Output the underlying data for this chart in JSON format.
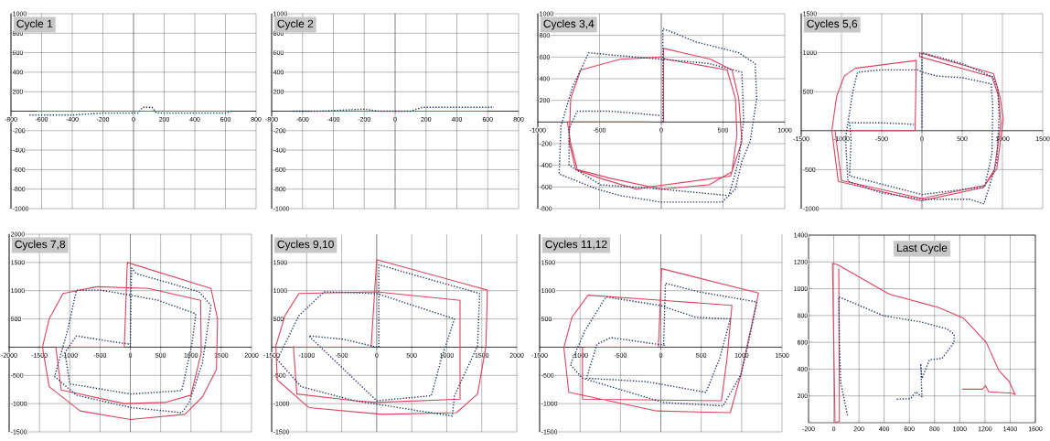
{
  "chart_data": [
    {
      "type": "line",
      "title": "Cycle 1",
      "xlim": [
        -800,
        800
      ],
      "ylim": [
        -1000,
        1000
      ],
      "xticks": [
        -800,
        -600,
        -400,
        -200,
        0,
        200,
        400,
        600,
        800
      ],
      "yticks": [
        -1000,
        -800,
        -600,
        -400,
        -200,
        200,
        400,
        600,
        800,
        1000
      ],
      "grid": true,
      "series": [
        {
          "color": "#d9455f",
          "line_style": "solid",
          "x": [
            -630,
            640
          ],
          "values": [
            0,
            0
          ]
        },
        {
          "color": "#2a3a6a",
          "line_style": "dotted",
          "x": [
            -680,
            -400,
            -200,
            -50,
            30,
            60,
            120,
            150,
            400,
            600,
            640
          ],
          "values": [
            -40,
            -40,
            -20,
            -20,
            -20,
            40,
            40,
            -20,
            -20,
            -20,
            0
          ]
        }
      ]
    },
    {
      "type": "line",
      "title": "Cycle 2",
      "xlim": [
        -800,
        800
      ],
      "ylim": [
        -1000,
        1000
      ],
      "xticks": [
        -800,
        -600,
        -400,
        -200,
        0,
        200,
        400,
        600,
        800
      ],
      "yticks": [
        -1000,
        -800,
        -600,
        -400,
        -200,
        200,
        400,
        600,
        800,
        1000
      ],
      "grid": true,
      "series": [
        {
          "color": "#d9455f",
          "line_style": "solid",
          "x": [
            -540,
            600
          ],
          "values": [
            0,
            0
          ]
        },
        {
          "color": "#2a3a6a",
          "line_style": "dotted",
          "x": [
            -660,
            -500,
            -200,
            -100,
            0,
            100,
            180,
            400,
            600,
            640
          ],
          "values": [
            0,
            0,
            20,
            0,
            0,
            0,
            40,
            40,
            40,
            40
          ]
        }
      ]
    },
    {
      "type": "line",
      "title": "Cycles 3,4",
      "xlim": [
        -1000,
        1000
      ],
      "ylim": [
        -800,
        1000
      ],
      "xticks": [
        -1000,
        -500,
        0,
        500,
        1000
      ],
      "yticks": [
        -800,
        -600,
        -400,
        -200,
        200,
        400,
        600,
        800,
        1000
      ],
      "grid": true,
      "series": [
        {
          "color": "#d9455f",
          "line_style": "solid",
          "x": [
            19,
            19,
            400,
            573,
            627,
            653,
            560,
            -93,
            -200,
            -493,
            -693,
            -747,
            -733,
            -653,
            -333,
            0,
            40,
            533,
            600,
            613,
            573,
            387,
            0,
            -413,
            -680,
            -733,
            -760,
            -93
          ],
          "values": [
            0,
            680,
            580,
            480,
            220,
            -180,
            -500,
            -600,
            -620,
            -520,
            -440,
            -180,
            220,
            480,
            580,
            600,
            580,
            480,
            220,
            -120,
            -460,
            -580,
            -620,
            -520,
            -440,
            -200,
            0,
            0
          ]
        },
        {
          "color": "#2a3a6a",
          "line_style": "dotted",
          "x": [
            13,
            13,
            67,
            280,
            627,
            760,
            773,
            720,
            653,
            600,
            493,
            0,
            -333,
            -520,
            -827,
            -813,
            -720,
            -587,
            -413,
            0,
            387,
            653,
            667,
            627,
            547,
            0,
            -493,
            -747,
            -747,
            -680,
            -413,
            -13
          ],
          "values": [
            0,
            860,
            840,
            740,
            640,
            540,
            220,
            -180,
            -360,
            -620,
            -740,
            -740,
            -680,
            -620,
            -480,
            -40,
            320,
            640,
            620,
            580,
            540,
            460,
            20,
            -360,
            -680,
            -620,
            -580,
            -400,
            -60,
            100,
            100,
            60
          ]
        }
      ]
    },
    {
      "type": "line",
      "title": "Cycles 5,6",
      "xlim": [
        -1500,
        1500
      ],
      "ylim": [
        -1000,
        1500
      ],
      "xticks": [
        -1500,
        -1000,
        -500,
        0,
        500,
        1000,
        1500
      ],
      "yticks": [
        -1000,
        -500,
        500,
        1000,
        1500
      ],
      "grid": true,
      "series": [
        {
          "color": "#d9455f",
          "line_style": "solid",
          "x": [
            -980,
            -85,
            -70,
            -830,
            -965,
            -1060,
            -1120,
            -1040,
            -10,
            760,
            930,
            1010,
            970,
            890,
            -30,
            -30,
            870,
            950,
            980,
            900,
            780,
            0,
            -1000,
            -1080
          ],
          "values": [
            0,
            0,
            900,
            800,
            700,
            440,
            0,
            -650,
            -900,
            -730,
            -490,
            150,
            430,
            730,
            1000,
            950,
            690,
            450,
            100,
            -500,
            -700,
            -870,
            -640,
            0
          ]
        },
        {
          "color": "#2a3a6a",
          "line_style": "dotted",
          "x": [
            0,
            0,
            80,
            500,
            880,
            940,
            960,
            930,
            770,
            600,
            0,
            -500,
            -920,
            -950,
            -860,
            -800,
            -500,
            -50,
            0,
            200,
            500,
            860,
            880,
            870,
            780,
            0,
            -900,
            -880,
            -900,
            -500,
            -100
          ],
          "values": [
            40,
            1000,
            980,
            860,
            690,
            550,
            200,
            -400,
            -940,
            -880,
            -880,
            -800,
            -650,
            -100,
            500,
            750,
            780,
            780,
            750,
            700,
            680,
            600,
            300,
            -300,
            -720,
            -820,
            -580,
            -100,
            100,
            100,
            80
          ]
        }
      ]
    },
    {
      "type": "line",
      "title": "Cycles 7,8",
      "xlim": [
        -2000,
        2000
      ],
      "ylim": [
        -1500,
        2000
      ],
      "xticks": [
        -2000,
        -1500,
        -1000,
        -500,
        0,
        500,
        1000,
        1500,
        2000
      ],
      "yticks": [
        -1500,
        -1000,
        -500,
        500,
        1000,
        1500,
        2000
      ],
      "grid": true,
      "series": [
        {
          "color": "#d9455f",
          "line_style": "solid",
          "x": [
            -1220,
            -100,
            -50,
            1330,
            1440,
            1420,
            1190,
            900,
            0,
            -830,
            -1340,
            -1450,
            -1340,
            -1110,
            -550,
            300,
            1160,
            1170,
            1000,
            570,
            -100,
            -1140,
            -1230
          ],
          "values": [
            0,
            0,
            1500,
            1040,
            500,
            -400,
            -880,
            -1190,
            -1280,
            -1130,
            -700,
            0,
            500,
            950,
            1070,
            1040,
            830,
            -100,
            -850,
            -980,
            -1000,
            -760,
            0
          ]
        },
        {
          "color": "#2a3a6a",
          "line_style": "dotted",
          "x": [
            0,
            20,
            100,
            600,
            1135,
            1330,
            1190,
            970,
            850,
            10,
            -890,
            -1250,
            -1030,
            -890,
            -490,
            10,
            460,
            1080,
            1020,
            850,
            10,
            -1000,
            -1080,
            -890,
            -380,
            10
          ],
          "values": [
            0,
            1400,
            1300,
            1150,
            980,
            740,
            -280,
            -980,
            -1160,
            -1070,
            -850,
            -520,
            320,
            1010,
            1010,
            920,
            830,
            590,
            80,
            -770,
            -830,
            -650,
            -100,
            200,
            110,
            50
          ]
        }
      ]
    },
    {
      "type": "line",
      "title": "Cycles 9,10",
      "xlim": [
        -1500,
        2000
      ],
      "ylim": [
        -1500,
        2000
      ],
      "xticks": [
        -1500,
        -1000,
        -500,
        0,
        500,
        1000,
        1500,
        2000
      ],
      "yticks": [
        -1500,
        -1000,
        -500,
        500,
        1000,
        1500
      ],
      "grid": true,
      "series": [
        {
          "color": "#d9455f",
          "line_style": "solid",
          "x": [
            -1220,
            -80,
            0,
            1580,
            1560,
            1440,
            1140,
            80,
            -970,
            -1420,
            -1440,
            -1310,
            -1110,
            0,
            1190,
            1190,
            0,
            -310,
            -1140,
            -1190
          ],
          "values": [
            0,
            0,
            1550,
            1010,
            20,
            -830,
            -1160,
            -1190,
            -1070,
            -580,
            20,
            560,
            950,
            980,
            830,
            -920,
            -980,
            -950,
            -830,
            20
          ]
        },
        {
          "color": "#2a3a6a",
          "line_style": "dotted",
          "x": [
            30,
            30,
            530,
            1470,
            1440,
            1110,
            1080,
            -310,
            -1080,
            -1420,
            -1110,
            -750,
            0,
            1110,
            920,
            780,
            0,
            -970,
            -470,
            0
          ],
          "values": [
            0,
            1460,
            1280,
            950,
            20,
            -860,
            -1220,
            -950,
            -700,
            -220,
            560,
            980,
            950,
            500,
            -220,
            -860,
            -950,
            200,
            140,
            0
          ]
        }
      ]
    },
    {
      "type": "line",
      "title": "Cycles 11,12",
      "xlim": [
        -1500,
        1500
      ],
      "ylim": [
        -1500,
        2000
      ],
      "xticks": [
        -1500,
        -1000,
        -500,
        0,
        500,
        1000,
        1500
      ],
      "yticks": [
        -1500,
        -1000,
        -500,
        500,
        1000,
        1500
      ],
      "grid": true,
      "series": [
        {
          "color": "#d9455f",
          "line_style": "solid",
          "x": [
            -940,
            -30,
            10,
            1210,
            990,
            860,
            -50,
            -1140,
            -1200,
            -1100,
            -900,
            10,
            880,
            820,
            750,
            -970,
            -970
          ],
          "values": [
            0,
            0,
            1390,
            960,
            -490,
            -1160,
            -1130,
            -800,
            -10,
            530,
            920,
            830,
            740,
            -190,
            -950,
            -920,
            0
          ]
        },
        {
          "color": "#2a3a6a",
          "line_style": "dotted",
          "x": [
            35,
            57,
            470,
            1190,
            1080,
            990,
            770,
            35,
            -970,
            -1120,
            -940,
            -680,
            -10,
            430,
            860,
            730,
            560,
            -180,
            -920,
            -790,
            -620,
            60
          ],
          "values": [
            50,
            1130,
            980,
            800,
            50,
            -490,
            -1040,
            -980,
            -550,
            -310,
            290,
            890,
            740,
            530,
            500,
            -190,
            -800,
            -610,
            -550,
            50,
            170,
            30
          ]
        }
      ]
    },
    {
      "type": "line",
      "title": "Last Cycle",
      "xlim": [
        -200,
        1600
      ],
      "ylim": [
        0,
        1400
      ],
      "xticks": [
        -200,
        0,
        200,
        400,
        600,
        800,
        1000,
        1200,
        1400,
        1600
      ],
      "yticks": [
        200,
        400,
        600,
        800,
        1000,
        1200,
        1400
      ],
      "grid": true,
      "series": [
        {
          "color": "#d9455f",
          "line_style": "solid",
          "x": [
            1020,
            1180,
            1205,
            1230,
            1415,
            1440,
            1390,
            1310,
            1210,
            1030,
            830,
            440,
            30,
            -10,
            10,
            45,
            40
          ],
          "values": [
            250,
            250,
            275,
            230,
            220,
            210,
            310,
            390,
            600,
            780,
            860,
            960,
            1180,
            1190,
            0,
            10,
            1150
          ]
        },
        {
          "color": "#2a3a6a",
          "line_style": "dotted",
          "x": [
            500,
            610,
            650,
            700,
            690,
            700,
            760,
            860,
            955,
            955,
            900,
            700,
            390,
            40,
            45,
            55,
            110
          ],
          "values": [
            175,
            180,
            230,
            195,
            440,
            330,
            470,
            480,
            600,
            660,
            700,
            750,
            800,
            940,
            600,
            300,
            50
          ]
        }
      ]
    }
  ]
}
